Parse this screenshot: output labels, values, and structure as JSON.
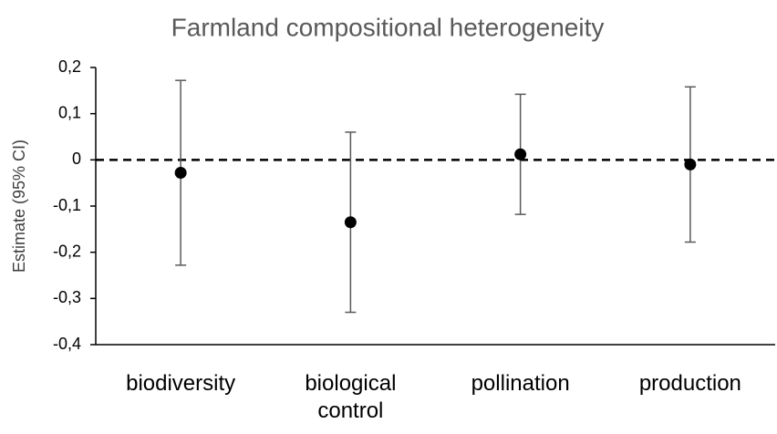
{
  "chart_data": {
    "type": "errorpoint",
    "title": "Farmland compositional heterogeneity",
    "y_label": "Estimate (95% CI)",
    "categories": [
      "biodiversity",
      "biological control",
      "pollination",
      "production"
    ],
    "values": [
      -0.028,
      -0.135,
      0.012,
      -0.01
    ],
    "errors": [
      0.2,
      0.195,
      0.13,
      0.168
    ],
    "color": "#000000",
    "error_color": "#595959",
    "ylim": [
      -0.4,
      0.2
    ],
    "yticks": [
      {
        "value": 0.2,
        "label": "0,2"
      },
      {
        "value": 0.1,
        "label": "0,1"
      },
      0,
      {
        "value": -0.1,
        "label": "-0,1"
      },
      {
        "value": -0.2,
        "label": "-0,2"
      },
      {
        "value": -0.3,
        "label": "-0,3"
      },
      {
        "value": -0.4,
        "label": "-0,4"
      }
    ],
    "reference_line": 0
  }
}
